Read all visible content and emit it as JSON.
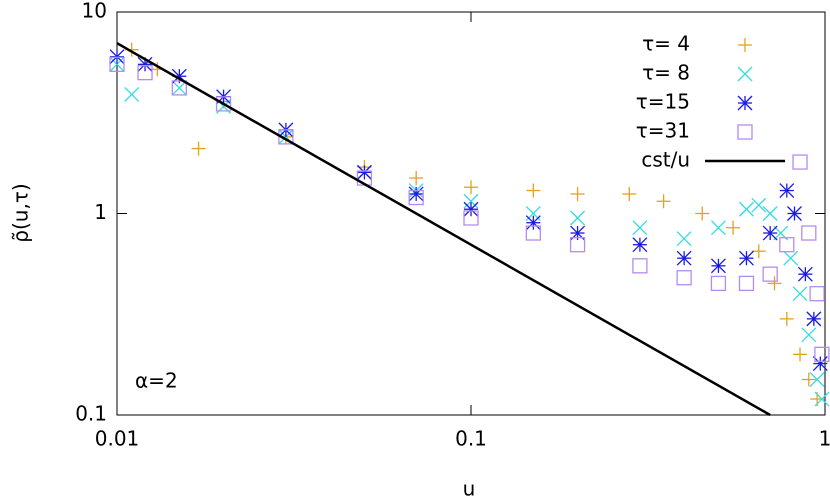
{
  "chart_data": {
    "type": "scatter",
    "xlabel": "u",
    "ylabel": "ρ̃(u,τ)",
    "annotation": "α=2",
    "xscale": "log",
    "yscale": "log",
    "xlim": [
      0.01,
      1
    ],
    "ylim": [
      0.1,
      10
    ],
    "xticks": [
      0.01,
      0.1,
      1
    ],
    "yticks": [
      0.1,
      1,
      10
    ],
    "legend": "top right",
    "series": [
      {
        "name": "τ= 4",
        "color": "#e6a020",
        "marker": "plus",
        "x": [
          0.011,
          0.013,
          0.017,
          0.02,
          0.03,
          0.05,
          0.07,
          0.1,
          0.15,
          0.2,
          0.28,
          0.35,
          0.45,
          0.55,
          0.65,
          0.72,
          0.78,
          0.85,
          0.9,
          0.95
        ],
        "values": [
          6.5,
          5.2,
          2.1,
          3.6,
          2.4,
          1.7,
          1.5,
          1.35,
          1.3,
          1.25,
          1.25,
          1.15,
          1.0,
          0.85,
          0.65,
          0.45,
          0.3,
          0.2,
          0.15,
          0.12
        ]
      },
      {
        "name": "τ= 8",
        "color": "#33dde0",
        "marker": "cross",
        "x": [
          0.01,
          0.011,
          0.015,
          0.02,
          0.03,
          0.05,
          0.07,
          0.1,
          0.15,
          0.2,
          0.3,
          0.4,
          0.5,
          0.6,
          0.65,
          0.7,
          0.75,
          0.8,
          0.85,
          0.9,
          0.95,
          0.98
        ],
        "values": [
          5.5,
          3.9,
          4.2,
          3.4,
          2.4,
          1.6,
          1.3,
          1.15,
          1.0,
          0.95,
          0.85,
          0.75,
          0.85,
          1.05,
          1.1,
          1.0,
          0.8,
          0.6,
          0.4,
          0.25,
          0.15,
          0.12
        ]
      },
      {
        "name": "τ=15",
        "color": "#1a1ae0",
        "marker": "star",
        "x": [
          0.01,
          0.012,
          0.015,
          0.02,
          0.03,
          0.05,
          0.07,
          0.1,
          0.15,
          0.2,
          0.3,
          0.4,
          0.5,
          0.6,
          0.7,
          0.78,
          0.82,
          0.88,
          0.93,
          0.97
        ],
        "values": [
          6.0,
          5.5,
          4.8,
          3.8,
          2.6,
          1.6,
          1.25,
          1.05,
          0.9,
          0.8,
          0.7,
          0.6,
          0.55,
          0.6,
          0.8,
          1.3,
          1.0,
          0.5,
          0.3,
          0.18
        ]
      },
      {
        "name": "τ=31",
        "color": "#b48cf0",
        "marker": "square",
        "x": [
          0.01,
          0.012,
          0.015,
          0.02,
          0.03,
          0.05,
          0.07,
          0.1,
          0.15,
          0.2,
          0.3,
          0.4,
          0.5,
          0.6,
          0.7,
          0.78,
          0.85,
          0.9,
          0.95,
          0.98
        ],
        "values": [
          5.5,
          5.0,
          4.2,
          3.5,
          2.4,
          1.5,
          1.2,
          0.95,
          0.8,
          0.7,
          0.55,
          0.48,
          0.45,
          0.45,
          0.5,
          0.7,
          1.8,
          0.8,
          0.4,
          0.2
        ]
      },
      {
        "name": "cst/u",
        "color": "#000000",
        "marker": "line",
        "x": [
          0.01,
          0.7
        ],
        "values": [
          7,
          0.1
        ]
      }
    ]
  }
}
